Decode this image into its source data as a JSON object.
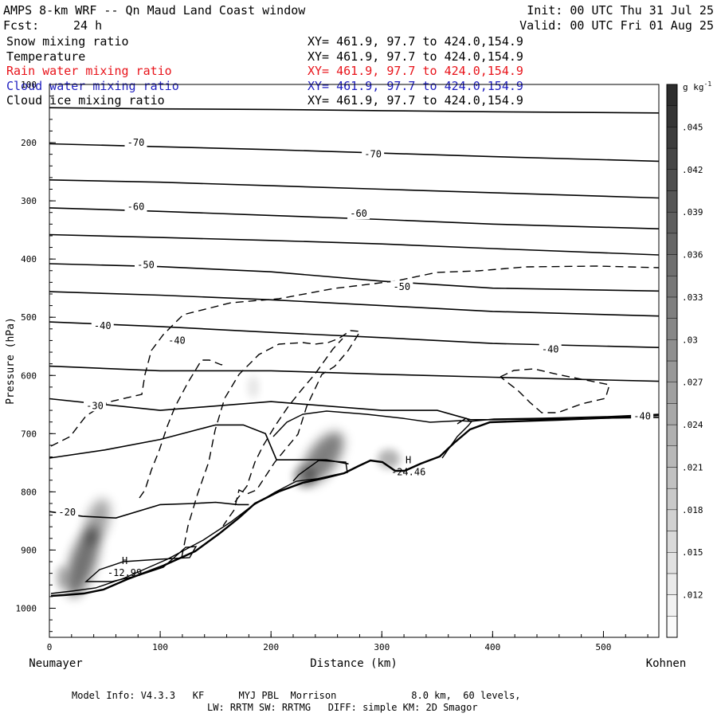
{
  "header": {
    "title": "AMPS 8-km WRF -- Qn Maud Land Coast window",
    "init": "Init: 00 UTC Thu 31 Jul 25",
    "fcst_label": "Fcst:",
    "fcst_value": "24 h",
    "valid": "Valid: 00 UTC Fri 01 Aug 25"
  },
  "fields": [
    {
      "name": "Snow mixing ratio",
      "xy": "XY= 461.9, 97.7 to 424.0,154.9",
      "color": "#000000"
    },
    {
      "name": "Temperature",
      "xy": "XY= 461.9, 97.7 to 424.0,154.9",
      "color": "#000000"
    },
    {
      "name": "Rain water mixing ratio",
      "xy": "XY= 461.9, 97.7 to 424.0,154.9",
      "color": "#e8141b"
    },
    {
      "name": "Cloud water mixing ratio",
      "xy": "XY= 461.9, 97.7 to 424.0,154.9",
      "color": "#2020c0"
    },
    {
      "name": "Cloud ice mixing ratio",
      "xy": "XY= 461.9, 97.7 to 424.0,154.9",
      "color": "#000000"
    }
  ],
  "footer": {
    "line1": "Model Info: V4.3.3   KF      MYJ PBL  Morrison             8.0 km,  60 levels,",
    "line2": "LW: RRTM SW: RRTMG   DIFF: simple KM: 2D Smagor"
  },
  "chart_data": {
    "type": "contour",
    "xlabel": "Distance (km)",
    "ylabel": "Pressure (hPa)",
    "x_left_label": "Neumayer",
    "x_right_label": "Kohnen",
    "xlim": [
      0,
      550
    ],
    "ylim": [
      1050,
      100
    ],
    "x_ticks": [
      0,
      100,
      200,
      300,
      400,
      500
    ],
    "y_ticks": [
      100,
      200,
      300,
      400,
      500,
      600,
      700,
      800,
      900,
      1000
    ],
    "colorbar": {
      "unit": "g kg",
      "unit_exp": "-1",
      "ticks": [
        ".012",
        ".015",
        ".018",
        ".021",
        ".024",
        ".027",
        ".03",
        ".033",
        ".036",
        ".039",
        ".042",
        ".045"
      ],
      "min": 0.009,
      "max": 0.048,
      "step": 0.0015
    },
    "temperature_contour_labels": [
      {
        "label": "-70",
        "x": 78,
        "p": 200
      },
      {
        "label": "-70",
        "x": 292,
        "p": 220
      },
      {
        "label": "-60",
        "x": 78,
        "p": 310
      },
      {
        "label": "-60",
        "x": 279,
        "p": 322
      },
      {
        "label": "-50",
        "x": 87,
        "p": 410
      },
      {
        "label": "-50",
        "x": 318,
        "p": 448
      },
      {
        "label": "-40",
        "x": 48,
        "p": 515
      },
      {
        "label": "-40",
        "x": 115,
        "p": 540
      },
      {
        "label": "-40",
        "x": 452,
        "p": 555
      },
      {
        "label": "-40",
        "x": 535,
        "p": 670
      },
      {
        "label": "-30",
        "x": 41,
        "p": 652
      },
      {
        "label": "-20",
        "x": 16,
        "p": 835
      }
    ],
    "temperature_contours": [
      {
        "x": [
          0,
          100,
          200,
          300,
          400,
          550
        ],
        "p": [
          140,
          142,
          143,
          145,
          147,
          149
        ]
      },
      {
        "x": [
          0,
          100,
          200,
          300,
          400,
          550
        ],
        "p": [
          202,
          207,
          212,
          218,
          224,
          232
        ]
      },
      {
        "x": [
          0,
          100,
          200,
          300,
          400,
          550
        ],
        "p": [
          264,
          268,
          274,
          280,
          286,
          295
        ]
      },
      {
        "x": [
          0,
          100,
          200,
          300,
          400,
          550
        ],
        "p": [
          312,
          318,
          325,
          332,
          340,
          348
        ]
      },
      {
        "x": [
          0,
          100,
          200,
          300,
          400,
          550
        ],
        "p": [
          358,
          363,
          368,
          374,
          382,
          393
        ]
      },
      {
        "x": [
          0,
          100,
          200,
          300,
          400,
          550
        ],
        "p": [
          408,
          413,
          422,
          438,
          450,
          455
        ]
      },
      {
        "x": [
          0,
          100,
          200,
          300,
          400,
          550
        ],
        "p": [
          456,
          462,
          470,
          480,
          490,
          498
        ]
      },
      {
        "x": [
          0,
          100,
          200,
          300,
          400,
          550
        ],
        "p": [
          508,
          516,
          526,
          535,
          545,
          552
        ]
      },
      {
        "x": [
          0,
          100,
          200,
          300,
          400,
          550
        ],
        "p": [
          584,
          592,
          592,
          598,
          603,
          610
        ]
      },
      {
        "x": [
          0,
          100,
          200,
          300,
          350,
          380,
          400,
          550
        ],
        "p": [
          640,
          660,
          645,
          660,
          660,
          676,
          676,
          672
        ]
      },
      {
        "x": [
          0,
          50,
          100,
          150,
          175,
          195,
          205,
          230,
          250,
          270
        ],
        "p": [
          742,
          728,
          710,
          685,
          685,
          700,
          745,
          745,
          745,
          752
        ]
      },
      {
        "x": [
          0,
          30,
          60,
          100,
          130,
          150,
          170,
          180
        ],
        "p": [
          834,
          842,
          845,
          822,
          820,
          818,
          822,
          822
        ]
      }
    ],
    "pressure_maxima": [
      {
        "label": "H",
        "value": "-12.99",
        "x": 68,
        "p": 935
      },
      {
        "label": "H",
        "value": "-24.46",
        "x": 324,
        "p": 762
      }
    ]
  }
}
